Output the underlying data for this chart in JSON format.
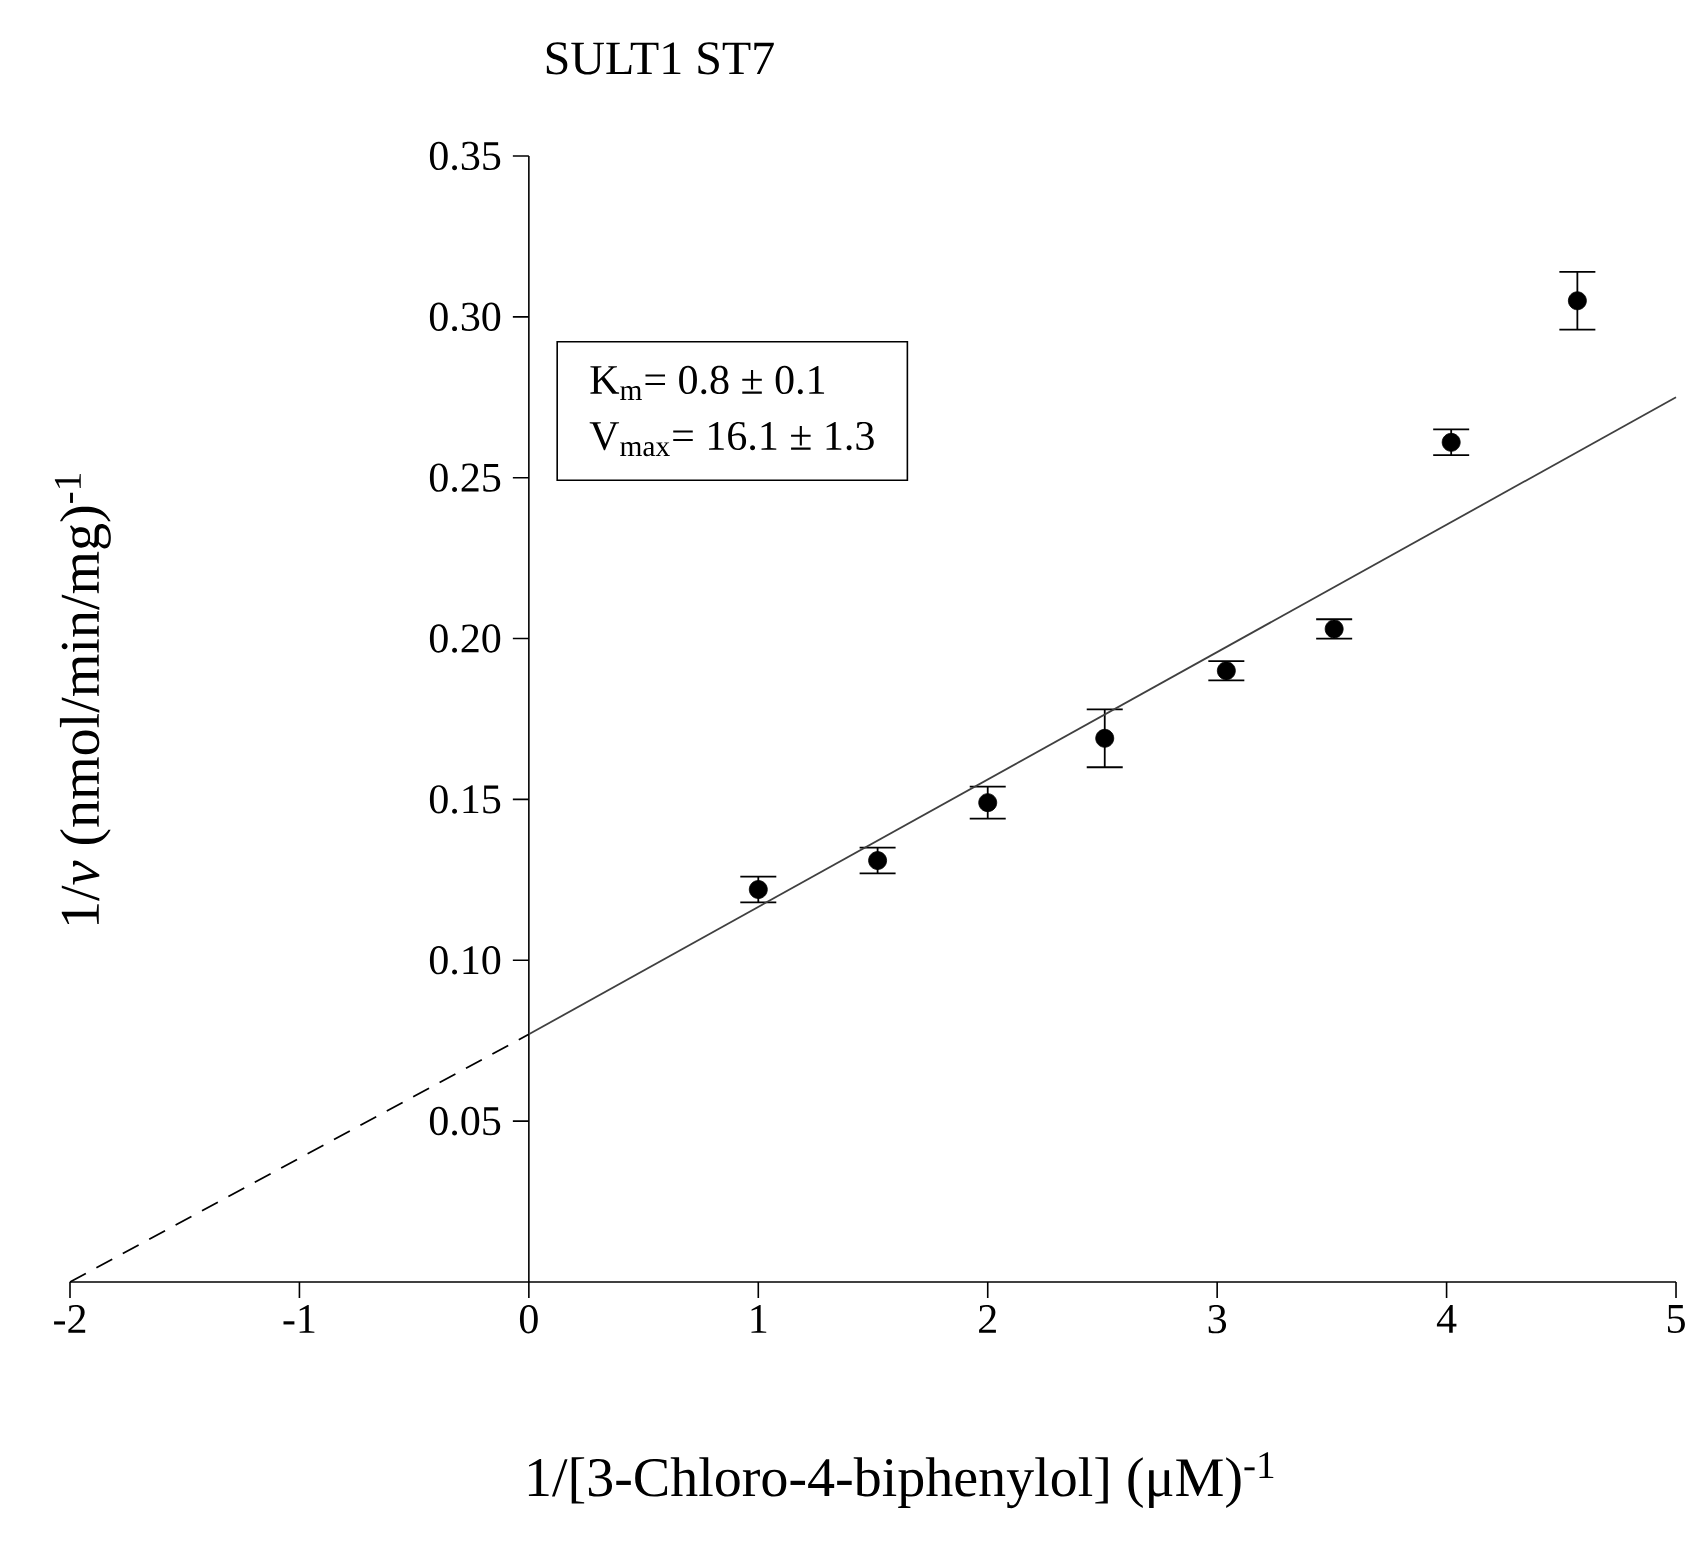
{
  "chart_data": {
    "type": "scatter",
    "title": "SULT1 ST7",
    "xlabel": "1/[3-Chloro-4-biphenylol] (μM)$^{-1}$",
    "ylabel": "1/*v* (nmol/min/mg)$^{-1}$",
    "xlim": [
      -2,
      5
    ],
    "xticks": [
      -2,
      -1,
      0,
      1,
      2,
      3,
      4,
      5
    ],
    "ylim": [
      0,
      0.35
    ],
    "yticks": [
      0.05,
      {
        "value": 0.1,
        "label": "0.10"
      },
      0.15,
      {
        "value": 0.2,
        "label": "0.20"
      },
      0.25,
      {
        "value": 0.3,
        "label": "0.30"
      },
      0.35
    ],
    "annotations": [
      "K$_{m}$= 0.8 ± 0.1",
      "V$_{max}$= 16.1 ± 1.3"
    ],
    "series": [
      {
        "color": "#000000",
        "marker": "circle",
        "x": [
          1.0,
          1.52,
          2.0,
          2.51,
          3.04,
          3.51,
          4.02,
          4.57
        ],
        "values": [
          0.122,
          0.131,
          0.149,
          0.169,
          0.19,
          0.203,
          0.261,
          0.305
        ],
        "errors": [
          0.004,
          0.004,
          0.005,
          0.009,
          0.003,
          0.003,
          0.004,
          0.009
        ]
      },
      {
        "type": "line",
        "color": "#404040",
        "line_style": "solid",
        "marker": "none",
        "x": [
          0,
          5
        ],
        "values": [
          0.077,
          0.275
        ]
      },
      {
        "type": "line",
        "color": "#000000",
        "line_style": "dashed",
        "marker": "none",
        "x": [
          -2,
          0
        ],
        "values": [
          0,
          0.077
        ]
      }
    ]
  }
}
